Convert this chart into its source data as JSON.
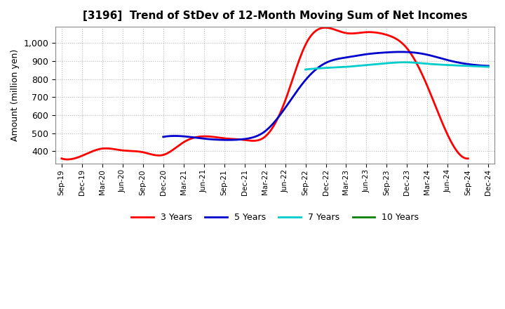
{
  "title": "[3196]  Trend of StDev of 12-Month Moving Sum of Net Incomes",
  "ylabel": "Amount (million yen)",
  "background_color": "#ffffff",
  "plot_bg_color": "#ffffff",
  "grid_color": "#aaaaaa",
  "ylim": [
    330,
    1090
  ],
  "yticks": [
    400,
    500,
    600,
    700,
    800,
    900,
    1000
  ],
  "x_labels": [
    "Sep-19",
    "Dec-19",
    "Mar-20",
    "Jun-20",
    "Sep-20",
    "Dec-20",
    "Mar-21",
    "Jun-21",
    "Sep-21",
    "Dec-21",
    "Mar-22",
    "Jun-22",
    "Sep-22",
    "Dec-22",
    "Mar-23",
    "Jun-23",
    "Sep-23",
    "Dec-23",
    "Mar-24",
    "Jun-24",
    "Sep-24",
    "Dec-24"
  ],
  "series": [
    {
      "label": "3 Years",
      "color": "#ff0000",
      "values": [
        360,
        375,
        415,
        405,
        395,
        380,
        450,
        483,
        472,
        463,
        480,
        680,
        990,
        1085,
        1055,
        1060,
        1045,
        970,
        760,
        490,
        360,
        null
      ]
    },
    {
      "label": "5 Years",
      "color": "#0000cc",
      "values": [
        null,
        null,
        null,
        null,
        null,
        480,
        483,
        470,
        463,
        468,
        510,
        640,
        795,
        890,
        920,
        938,
        948,
        950,
        935,
        905,
        883,
        873
      ]
    },
    {
      "label": "7 Years",
      "color": "#00cccc",
      "values": [
        null,
        null,
        null,
        null,
        null,
        null,
        null,
        null,
        null,
        null,
        null,
        null,
        853,
        862,
        868,
        878,
        888,
        893,
        885,
        878,
        873,
        868
      ]
    },
    {
      "label": "10 Years",
      "color": "#008000",
      "values": [
        null,
        null,
        null,
        null,
        null,
        null,
        null,
        null,
        null,
        null,
        null,
        null,
        null,
        null,
        null,
        null,
        null,
        null,
        null,
        null,
        null,
        null
      ]
    }
  ],
  "legend_labels": [
    "3 Years",
    "5 Years",
    "7 Years",
    "10 Years"
  ],
  "legend_colors": [
    "#ff0000",
    "#0000cc",
    "#00cccc",
    "#008000"
  ]
}
